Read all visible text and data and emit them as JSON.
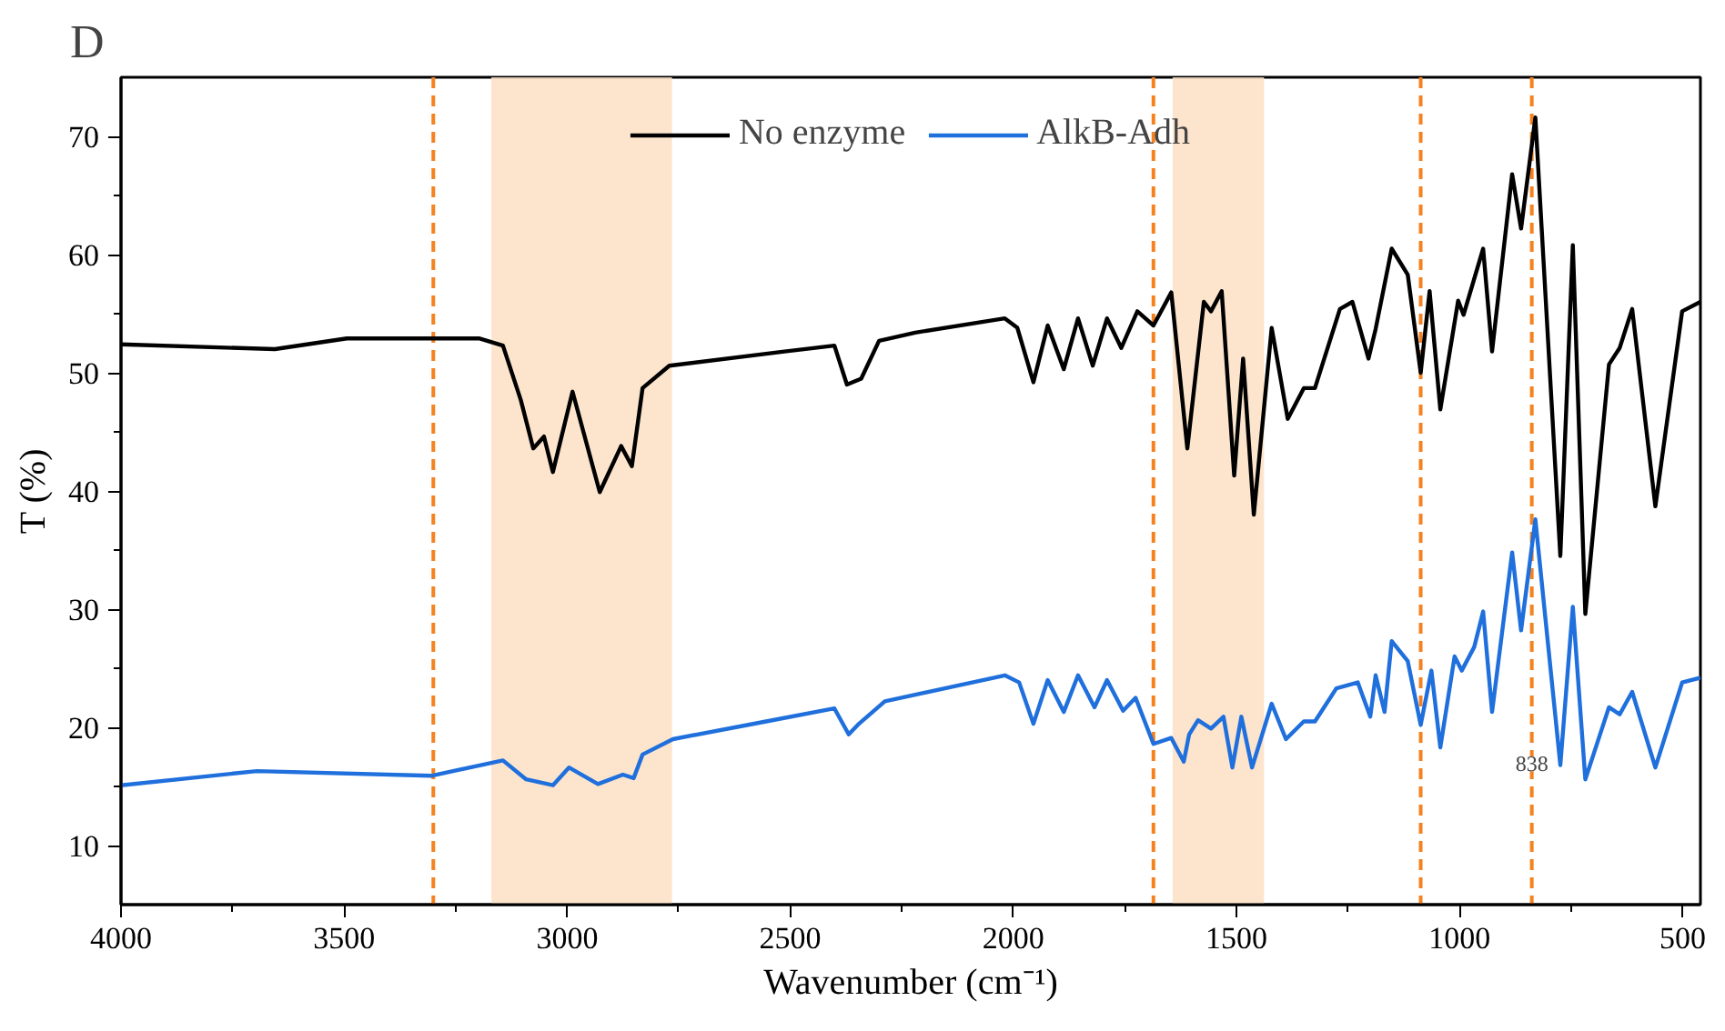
{
  "chart_data": {
    "type": "line",
    "title": "D",
    "xlabel": "Wavenumber (cm⁻¹)",
    "ylabel": "T (%)",
    "xlim": [
      4000,
      460
    ],
    "xticks": [
      4000,
      3500,
      3000,
      2500,
      2000,
      1500,
      1000,
      500
    ],
    "ylim": [
      5,
      75
    ],
    "yticks": [
      10,
      20,
      30,
      40,
      50,
      60,
      70
    ],
    "grid": false,
    "legend": "top",
    "line_style": "solid",
    "marker": "none",
    "series": [
      {
        "name": "No enzyme",
        "color": "#000000",
        "x": [
          4000,
          3655,
          3494,
          3196,
          3144,
          3104,
          3076,
          3052,
          3032,
          2988,
          2927,
          2879,
          2855,
          2831,
          2771,
          2513,
          2401,
          2373,
          2341,
          2301,
          2220,
          2019,
          1991,
          1955,
          1923,
          1887,
          1855,
          1822,
          1790,
          1758,
          1722,
          1686,
          1646,
          1610,
          1573,
          1557,
          1533,
          1505,
          1485,
          1461,
          1421,
          1385,
          1349,
          1324,
          1268,
          1240,
          1204,
          1188,
          1152,
          1116,
          1087,
          1067,
          1043,
          1003,
          991,
          947,
          927,
          882,
          862,
          830,
          774,
          746,
          718,
          665,
          641,
          613,
          561,
          501,
          460
        ],
        "values": [
          52.4,
          52.0,
          52.9,
          52.9,
          52.3,
          47.7,
          43.6,
          44.6,
          41.6,
          48.4,
          39.9,
          43.8,
          42.1,
          48.7,
          50.6,
          51.8,
          52.3,
          49.0,
          49.5,
          52.7,
          53.4,
          54.6,
          53.8,
          49.2,
          54.0,
          50.3,
          54.6,
          50.6,
          54.6,
          52.1,
          55.2,
          54.0,
          56.8,
          43.6,
          56.0,
          55.2,
          56.9,
          41.3,
          51.2,
          38.0,
          53.8,
          46.1,
          48.7,
          48.7,
          55.4,
          56.0,
          51.2,
          53.7,
          60.5,
          58.3,
          50.0,
          56.9,
          46.9,
          56.1,
          54.9,
          60.5,
          51.8,
          66.8,
          62.2,
          71.6,
          34.5,
          60.8,
          29.6,
          50.7,
          52.1,
          55.4,
          38.7,
          55.2,
          56.0
        ]
      },
      {
        "name": "AlkB-Adh",
        "color": "#1f6fdc",
        "x": [
          4000,
          3695,
          3305,
          3144,
          3092,
          3032,
          2996,
          2931,
          2875,
          2851,
          2831,
          2763,
          2554,
          2401,
          2369,
          2349,
          2288,
          2019,
          1987,
          1955,
          1923,
          1887,
          1855,
          1818,
          1790,
          1754,
          1726,
          1686,
          1646,
          1618,
          1606,
          1586,
          1557,
          1529,
          1509,
          1489,
          1465,
          1421,
          1389,
          1349,
          1324,
          1276,
          1228,
          1200,
          1188,
          1168,
          1152,
          1116,
          1087,
          1063,
          1043,
          1011,
          995,
          967,
          947,
          927,
          882,
          862,
          830,
          774,
          746,
          718,
          665,
          641,
          613,
          561,
          501,
          460
        ],
        "values": [
          15.1,
          16.3,
          15.9,
          17.2,
          15.6,
          15.1,
          16.6,
          15.2,
          16.0,
          15.7,
          17.7,
          19.0,
          20.5,
          21.6,
          19.4,
          20.2,
          22.2,
          24.4,
          23.8,
          20.3,
          24.0,
          21.3,
          24.4,
          21.7,
          24.0,
          21.4,
          22.5,
          18.6,
          19.1,
          17.1,
          19.4,
          20.6,
          19.9,
          20.9,
          16.6,
          20.9,
          16.6,
          22.0,
          19.0,
          20.5,
          20.5,
          23.3,
          23.8,
          20.9,
          24.4,
          21.3,
          27.3,
          25.6,
          20.2,
          24.8,
          18.3,
          26.0,
          24.8,
          26.8,
          29.8,
          21.3,
          34.8,
          28.2,
          37.6,
          16.8,
          30.2,
          15.6,
          21.7,
          21.1,
          23.0,
          16.6,
          23.8,
          24.2
        ]
      }
    ],
    "ref_lines": [
      {
        "axis": "x",
        "value": 3300,
        "color": "#f5821f",
        "line_style": "dashed"
      },
      {
        "axis": "x",
        "value": 1686,
        "color": "#f5821f",
        "line_style": "dashed"
      },
      {
        "axis": "x",
        "value": 1087,
        "color": "#f5821f",
        "line_style": "dashed"
      },
      {
        "axis": "x",
        "value": 838,
        "label": "838",
        "color": "#f5821f",
        "line_style": "dashed"
      }
    ],
    "bands": [
      {
        "axis": "x",
        "from": 3170,
        "to": 2765,
        "color": "#fde1c4"
      },
      {
        "axis": "x",
        "from": 1643,
        "to": 1438,
        "color": "#fde1c4"
      }
    ]
  }
}
